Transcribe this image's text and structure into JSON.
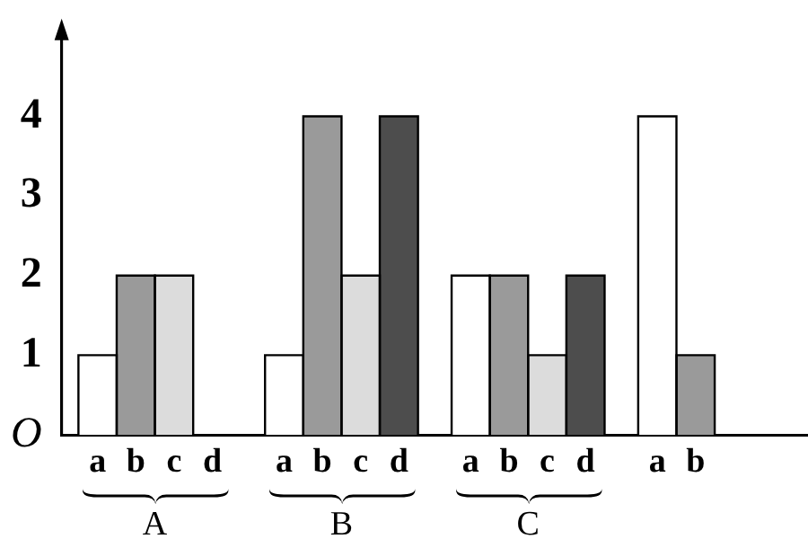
{
  "chart_data": {
    "type": "bar",
    "categories": [
      "A",
      "B",
      "C",
      null
    ],
    "series": [
      {
        "name": "a",
        "color": "#ffffff",
        "values": [
          1,
          1,
          2,
          4
        ]
      },
      {
        "name": "b",
        "color": "#9a9a9a",
        "values": [
          2,
          4,
          2,
          1
        ]
      },
      {
        "name": "c",
        "color": "#dcdcdc",
        "values": [
          2,
          2,
          1,
          null
        ]
      },
      {
        "name": "d",
        "color": "#4d4d4d",
        "values": [
          null,
          4,
          2,
          null
        ]
      }
    ],
    "legend": "bottom",
    "ylim": [
      0,
      5
    ],
    "yticks": [
      {
        "value": 0,
        "label": "O"
      },
      1,
      2,
      3,
      4
    ]
  }
}
